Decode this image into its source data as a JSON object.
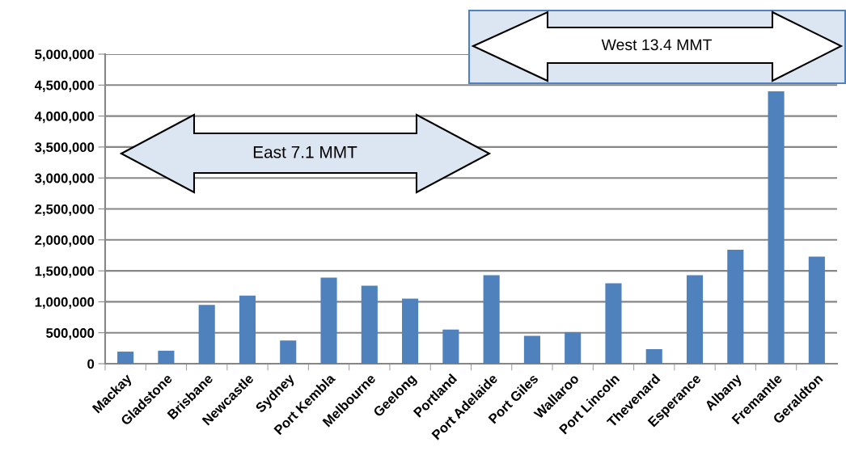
{
  "chart_data": {
    "type": "bar",
    "categories": [
      "Mackay",
      "Gladstone",
      "Brisbane",
      "Newcastle",
      "Sydney",
      "Port Kembla",
      "Melbourne",
      "Geelong",
      "Portland",
      "Port Adelaide",
      "Port Giles",
      "Wallaroo",
      "Port Lincoln",
      "Thevenard",
      "Esperance",
      "Albany",
      "Fremantle",
      "Geraldton"
    ],
    "values": [
      195000,
      210000,
      950000,
      1100000,
      375000,
      1390000,
      1260000,
      1050000,
      550000,
      1430000,
      450000,
      510000,
      1300000,
      235000,
      1430000,
      1840000,
      4400000,
      1730000
    ],
    "color": "#4f81bd",
    "ylim": [
      0,
      5000000
    ],
    "yticks": [
      {
        "value": 0,
        "label": "0"
      },
      {
        "value": 500000,
        "label": "500,000"
      },
      {
        "value": 1000000,
        "label": "1,000,000"
      },
      {
        "value": 1500000,
        "label": "1,500,000"
      },
      {
        "value": 2000000,
        "label": "2,000,000"
      },
      {
        "value": 2500000,
        "label": "2,500,000"
      },
      {
        "value": 3000000,
        "label": "3,000,000"
      },
      {
        "value": 3500000,
        "label": "3,500,000"
      },
      {
        "value": 4000000,
        "label": "4,000,000"
      },
      {
        "value": 4500000,
        "label": "4,500,000"
      },
      {
        "value": 5000000,
        "label": "5,000,000"
      }
    ],
    "grid": "y",
    "annotations": [
      "East 7.1 MMT",
      "West 13.4 MMT"
    ]
  }
}
